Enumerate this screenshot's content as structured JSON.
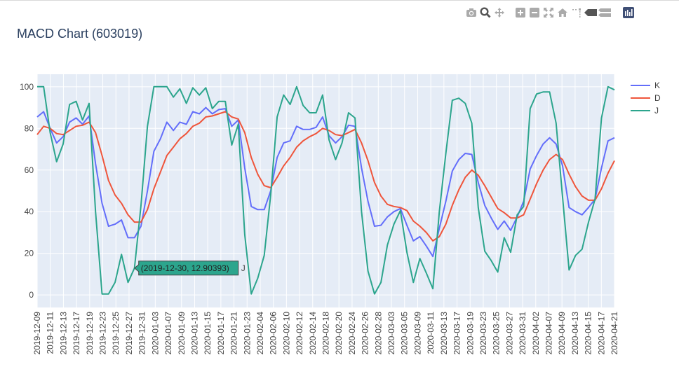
{
  "title": "MACD Chart (603019)",
  "toolbar": {
    "icons": [
      "camera-icon",
      "zoom-icon",
      "pan-icon",
      "zoom-in-icon",
      "zoom-out-icon",
      "autoscale-icon",
      "reset-axes-icon",
      "spike-lines-icon",
      "hover-closest-icon",
      "hover-compare-icon",
      "plotly-logo-icon"
    ]
  },
  "tooltip": {
    "text": "(2019-12-30, 12.90393)",
    "series": "J",
    "color": "#2ca58d"
  },
  "chart_data": {
    "type": "line",
    "x_tick_labels": [
      "2019-12-09",
      "2019-12-11",
      "2019-12-13",
      "2019-12-17",
      "2019-12-19",
      "2019-12-23",
      "2019-12-25",
      "2019-12-27",
      "2019-12-31",
      "2020-01-03",
      "2020-01-07",
      "2020-01-09",
      "2020-01-13",
      "2020-01-15",
      "2020-01-17",
      "2020-01-21",
      "2020-01-23",
      "2020-02-04",
      "2020-02-06",
      "2020-02-10",
      "2020-02-12",
      "2020-02-14",
      "2020-02-18",
      "2020-02-20",
      "2020-02-24",
      "2020-02-26",
      "2020-02-28",
      "2020-03-03",
      "2020-03-05",
      "2020-03-09",
      "2020-03-11",
      "2020-03-13",
      "2020-03-17",
      "2020-03-19",
      "2020-03-23",
      "2020-03-25",
      "2020-03-27",
      "2020-03-31",
      "2020-04-02",
      "2020-04-07",
      "2020-04-09",
      "2020-04-13",
      "2020-04-15",
      "2020-04-17",
      "2020-04-21"
    ],
    "y_ticks": [
      0,
      20,
      40,
      60,
      80,
      100
    ],
    "ylim": [
      -6,
      106
    ],
    "grid": true,
    "legend_position": "top-right",
    "series": [
      {
        "name": "K",
        "color": "#636efa",
        "values": [
          85.5,
          88,
          80,
          73,
          76,
          83,
          85,
          82,
          86,
          63,
          44,
          33,
          34,
          36,
          27.5,
          27.5,
          33,
          50,
          69,
          75,
          83,
          79,
          83,
          82,
          88,
          87,
          90,
          87,
          89,
          89.5,
          81,
          84,
          61,
          42.5,
          41,
          41,
          50,
          66,
          73,
          74,
          81,
          79.5,
          79.5,
          80.5,
          85.5,
          76.5,
          73,
          76,
          81.5,
          81,
          61,
          45,
          33,
          33.5,
          37.5,
          40,
          41.5,
          33.5,
          26,
          28,
          23.5,
          18.5,
          32,
          45,
          59.5,
          65,
          68,
          67.5,
          54,
          43,
          37,
          31.5,
          35.5,
          31,
          37.5,
          45,
          60.5,
          67,
          72.5,
          75.5,
          72.5,
          62,
          42,
          40,
          38.5,
          42,
          46,
          61,
          74,
          75.5
        ]
      },
      {
        "name": "D",
        "color": "#ef553b",
        "values": [
          77,
          81,
          80,
          77.5,
          77,
          79,
          81,
          81.5,
          83,
          78,
          67,
          55,
          48,
          44,
          38.5,
          35,
          35,
          41,
          51,
          59,
          67,
          71,
          75,
          77.5,
          81,
          82.5,
          85.5,
          86,
          87,
          88,
          85.5,
          84.5,
          78,
          66,
          58,
          52.5,
          51.5,
          56.5,
          62,
          66,
          71,
          74,
          76,
          77.5,
          80,
          79,
          77,
          76.5,
          78,
          79.5,
          73,
          64.5,
          54,
          47.5,
          43.5,
          42.5,
          42,
          40.5,
          35.5,
          33,
          30,
          26,
          28,
          34,
          43,
          50.5,
          56.5,
          60,
          57.5,
          52.5,
          47,
          41.5,
          39.5,
          37,
          37,
          38.5,
          46,
          53.5,
          60,
          65,
          67.5,
          65,
          58,
          52,
          47.5,
          45.5,
          45.5,
          51,
          58.5,
          64.5
        ]
      },
      {
        "name": "J",
        "color": "#2ca58d",
        "values": [
          100,
          100,
          78,
          64,
          72.5,
          91.5,
          93,
          84,
          92,
          40,
          0.5,
          0.5,
          6,
          19.5,
          6,
          12.9,
          43,
          81,
          100,
          100,
          100,
          95,
          99,
          92,
          99.5,
          96,
          99.5,
          89.5,
          93,
          93,
          72,
          82,
          29,
          0.5,
          8,
          19,
          48,
          85.5,
          96,
          91.5,
          100,
          91,
          87.5,
          87.5,
          96,
          74.5,
          65,
          73,
          87.5,
          85,
          40,
          11.5,
          0.5,
          6,
          24,
          34,
          40.5,
          20.5,
          6,
          17.5,
          10.5,
          3,
          40,
          68,
          93.5,
          94.5,
          92,
          82.5,
          42,
          21,
          16.5,
          11,
          27.5,
          20.5,
          38.5,
          42.5,
          89.5,
          96.5,
          97.5,
          97.5,
          82.5,
          47,
          12,
          19,
          22,
          35,
          46,
          85,
          100,
          98.5
        ]
      }
    ]
  }
}
